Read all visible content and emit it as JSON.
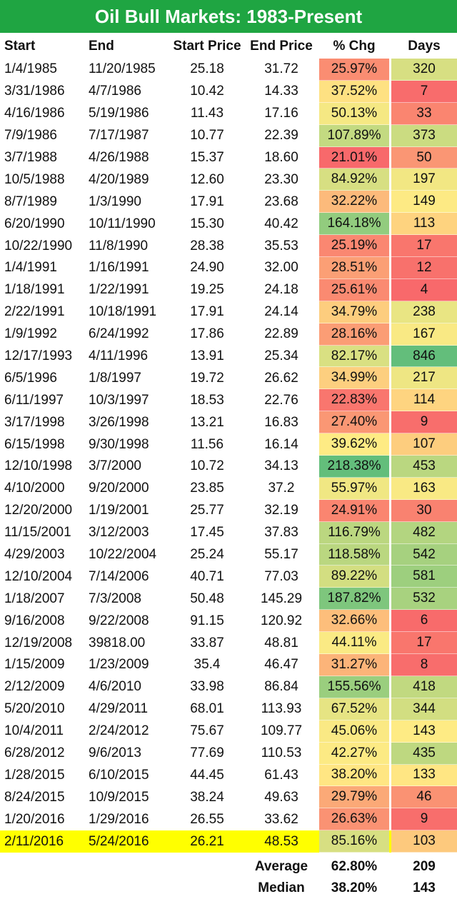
{
  "title": "Oil Bull Markets: 1983-Present",
  "headers": [
    "Start",
    "End",
    "Start Price",
    "End Price",
    "% Chg",
    "Days"
  ],
  "chart_data": {
    "type": "table",
    "title": "Oil Bull Markets: 1983-Present",
    "columns": [
      "Start",
      "End",
      "Start Price",
      "End Price",
      "% Chg",
      "Days"
    ],
    "rows": [
      [
        "1/4/1985",
        "11/20/1985",
        "25.18",
        "31.72",
        "25.97%",
        "320"
      ],
      [
        "3/31/1986",
        "4/7/1986",
        "10.42",
        "14.33",
        "37.52%",
        "7"
      ],
      [
        "4/16/1986",
        "5/19/1986",
        "11.43",
        "17.16",
        "50.13%",
        "33"
      ],
      [
        "7/9/1986",
        "7/17/1987",
        "10.77",
        "22.39",
        "107.89%",
        "373"
      ],
      [
        "3/7/1988",
        "4/26/1988",
        "15.37",
        "18.60",
        "21.01%",
        "50"
      ],
      [
        "10/5/1988",
        "4/20/1989",
        "12.60",
        "23.30",
        "84.92%",
        "197"
      ],
      [
        "8/7/1989",
        "1/3/1990",
        "17.91",
        "23.68",
        "32.22%",
        "149"
      ],
      [
        "6/20/1990",
        "10/11/1990",
        "15.30",
        "40.42",
        "164.18%",
        "113"
      ],
      [
        "10/22/1990",
        "11/8/1990",
        "28.38",
        "35.53",
        "25.19%",
        "17"
      ],
      [
        "1/4/1991",
        "1/16/1991",
        "24.90",
        "32.00",
        "28.51%",
        "12"
      ],
      [
        "1/18/1991",
        "1/22/1991",
        "19.25",
        "24.18",
        "25.61%",
        "4"
      ],
      [
        "2/22/1991",
        "10/18/1991",
        "17.91",
        "24.14",
        "34.79%",
        "238"
      ],
      [
        "1/9/1992",
        "6/24/1992",
        "17.86",
        "22.89",
        "28.16%",
        "167"
      ],
      [
        "12/17/1993",
        "4/11/1996",
        "13.91",
        "25.34",
        "82.17%",
        "846"
      ],
      [
        "6/5/1996",
        "1/8/1997",
        "19.72",
        "26.62",
        "34.99%",
        "217"
      ],
      [
        "6/11/1997",
        "10/3/1997",
        "18.53",
        "22.76",
        "22.83%",
        "114"
      ],
      [
        "3/17/1998",
        "3/26/1998",
        "13.21",
        "16.83",
        "27.40%",
        "9"
      ],
      [
        "6/15/1998",
        "9/30/1998",
        "11.56",
        "16.14",
        "39.62%",
        "107"
      ],
      [
        "12/10/1998",
        "3/7/2000",
        "10.72",
        "34.13",
        "218.38%",
        "453"
      ],
      [
        "4/10/2000",
        "9/20/2000",
        "23.85",
        "37.2",
        "55.97%",
        "163"
      ],
      [
        "12/20/2000",
        "1/19/2001",
        "25.77",
        "32.19",
        "24.91%",
        "30"
      ],
      [
        "11/15/2001",
        "3/12/2003",
        "17.45",
        "37.83",
        "116.79%",
        "482"
      ],
      [
        "4/29/2003",
        "10/22/2004",
        "25.24",
        "55.17",
        "118.58%",
        "542"
      ],
      [
        "12/10/2004",
        "7/14/2006",
        "40.71",
        "77.03",
        "89.22%",
        "581"
      ],
      [
        "1/18/2007",
        "7/3/2008",
        "50.48",
        "145.29",
        "187.82%",
        "532"
      ],
      [
        "9/16/2008",
        "9/22/2008",
        "91.15",
        "120.92",
        "32.66%",
        "6"
      ],
      [
        "12/19/2008",
        "39818.00",
        "33.87",
        "48.81",
        "44.11%",
        "17"
      ],
      [
        "1/15/2009",
        "1/23/2009",
        "35.4",
        "46.47",
        "31.27%",
        "8"
      ],
      [
        "2/12/2009",
        "4/6/2010",
        "33.98",
        "86.84",
        "155.56%",
        "418"
      ],
      [
        "5/20/2010",
        "4/29/2011",
        "68.01",
        "113.93",
        "67.52%",
        "344"
      ],
      [
        "10/4/2011",
        "2/24/2012",
        "75.67",
        "109.77",
        "45.06%",
        "143"
      ],
      [
        "6/28/2012",
        "9/6/2013",
        "77.69",
        "110.53",
        "42.27%",
        "435"
      ],
      [
        "1/28/2015",
        "6/10/2015",
        "44.45",
        "61.43",
        "38.20%",
        "133"
      ],
      [
        "8/24/2015",
        "10/9/2015",
        "38.24",
        "49.63",
        "29.79%",
        "46"
      ],
      [
        "1/20/2016",
        "1/29/2016",
        "26.55",
        "33.62",
        "26.63%",
        "9"
      ],
      [
        "2/11/2016",
        "5/24/2016",
        "26.21",
        "48.53",
        "85.16%",
        "103"
      ]
    ],
    "highlight_row": 35,
    "summary": [
      {
        "label": "Average",
        "pct": "62.80%",
        "days": "209"
      },
      {
        "label": "Median",
        "pct": "38.20%",
        "days": "143"
      }
    ]
  },
  "colors": {
    "title_bg": "#1fa542",
    "title_text": "#ffffff",
    "highlight": "#ffff00",
    "heat_low": "#f8696b",
    "heat_mid": "#ffeb84",
    "heat_high": "#63be7b"
  }
}
